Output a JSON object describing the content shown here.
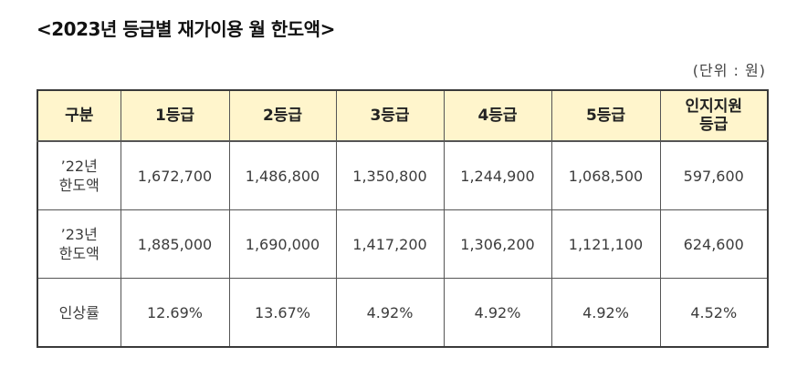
{
  "document": {
    "title": "<2023년 등급별 재가이용 월 한도액>",
    "unit_label": "(단위 : 원)"
  },
  "table": {
    "headers": [
      {
        "lines": [
          "구분"
        ]
      },
      {
        "lines": [
          "1등급"
        ]
      },
      {
        "lines": [
          "2등급"
        ]
      },
      {
        "lines": [
          "3등급"
        ]
      },
      {
        "lines": [
          "4등급"
        ]
      },
      {
        "lines": [
          "5등급"
        ]
      },
      {
        "lines": [
          "인지지원",
          "등급"
        ]
      }
    ],
    "rows": [
      {
        "label_lines": [
          "’22년",
          "한도액"
        ],
        "values": [
          "1,672,700",
          "1,486,800",
          "1,350,800",
          "1,244,900",
          "1,068,500",
          "597,600"
        ]
      },
      {
        "label_lines": [
          "’23년",
          "한도액"
        ],
        "values": [
          "1,885,000",
          "1,690,000",
          "1,417,200",
          "1,306,200",
          "1,121,100",
          "624,600"
        ]
      },
      {
        "label_lines": [
          "인상률"
        ],
        "values": [
          "12.69%",
          "13.67%",
          "4.92%",
          "4.92%",
          "4.92%",
          "4.52%"
        ]
      }
    ]
  },
  "colors": {
    "header_bg": "#fff5cc",
    "border": "#555555",
    "outer_border": "#3a3a3a"
  }
}
